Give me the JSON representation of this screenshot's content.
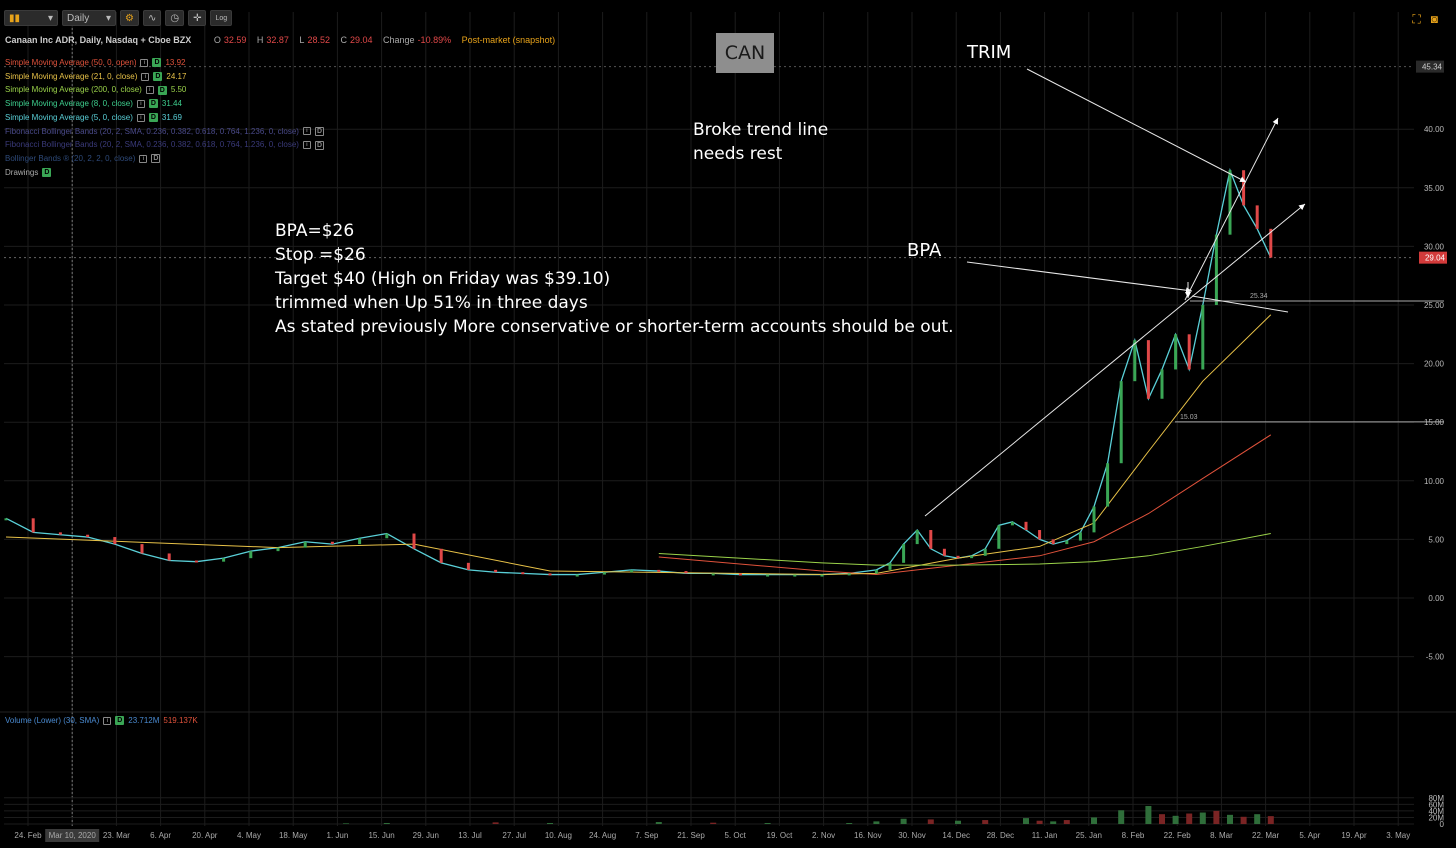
{
  "toolbar": {
    "chart_type_icon": "candlestick-icon",
    "timeframe": "Daily",
    "settings_icon": "gear-icon",
    "study_icon": "study-wave-icon",
    "clock_icon": "clock-icon",
    "drawing_icon": "drawing-icon",
    "log_label": "Log",
    "fullscreen_icon": "fullscreen-icon",
    "snapshot_icon": "camera-icon"
  },
  "header": {
    "symbol": "Canaan Inc ADR, Daily, Nasdaq + Cboe BZX",
    "o_label": "O",
    "o": "32.59",
    "h_label": "H",
    "h": "32.87",
    "l_label": "L",
    "l": "28.52",
    "c_label": "C",
    "c": "29.04",
    "change_label": "Change",
    "change": "-10.89%",
    "postmarket": "Post-market (snapshot)"
  },
  "studies": [
    {
      "label": "Simple Moving Average (50, 0, open)",
      "value": "13.92",
      "color": "#e0523b"
    },
    {
      "label": "Simple Moving Average (21, 0, close)",
      "value": "24.17",
      "color": "#e8c248"
    },
    {
      "label": "Simple Moving Average (200, 0, close)",
      "value": "5.50",
      "color": "#9bd34a"
    },
    {
      "label": "Simple Moving Average (8, 0, close)",
      "value": "31.44",
      "color": "#3ecf8e"
    },
    {
      "label": "Simple Moving Average (5, 0, close)",
      "value": "31.69",
      "color": "#5ad0d8"
    },
    {
      "label": "Fibonacci Bollinger Bands (20, 2, SMA, 0.236, 0.382, 0.618, 0.764, 1.236, 0, close)",
      "value": "",
      "color": "#4a4a8a"
    },
    {
      "label": "Fibonacci Bollinger Bands (20, 2, SMA, 0.236, 0.382, 0.618, 0.764, 1.236, 0, close)",
      "value": "",
      "color": "#3a3a7a"
    },
    {
      "label": "Bollinger Bands ® (20, 2, 2, 0, close)",
      "value": "",
      "color": "#2e4a7a"
    }
  ],
  "drawings_label": "Drawings",
  "badge_letter": "D",
  "volume_study": {
    "label": "Volume (Lower) (30, SMA)",
    "value1": "23.712M",
    "value2": "519.137K",
    "color1": "#4a8ad0",
    "color2": "#e0523b"
  },
  "annotations": {
    "can": "CAN",
    "trim": "TRIM",
    "broke_1": "Broke trend line",
    "broke_2": "needs rest",
    "bpa": "BPA",
    "note_lines": [
      "BPA=$26",
      "Stop =$26",
      "Target $40 (High on Friday was $39.10)",
      "trimmed when Up 51% in three days",
      "As stated previously More conservative or shorter-term accounts should be out."
    ]
  },
  "colors": {
    "up": "#3aa655",
    "down": "#e04848",
    "grid": "#1c1c1c",
    "sma50": "#e0523b",
    "sma21": "#e8c248",
    "sma200": "#9bd34a",
    "sma8": "#3ecf8e",
    "sma5": "#5ad0d8",
    "last_price_tag": "#d23a3a"
  },
  "chart_data": {
    "type": "line",
    "title": "Canaan Inc ADR, Daily, Nasdaq + Cboe BZX",
    "x_ticks": [
      "24. Feb",
      "Mar 10, 2020",
      "23. Mar",
      "6. Apr",
      "20. Apr",
      "4. May",
      "18. May",
      "1. Jun",
      "15. Jun",
      "29. Jun",
      "13. Jul",
      "27. Jul",
      "10. Aug",
      "24. Aug",
      "7. Sep",
      "21. Sep",
      "5. Oct",
      "19. Oct",
      "2. Nov",
      "16. Nov",
      "30. Nov",
      "14. Dec",
      "28. Dec",
      "11. Jan",
      "25. Jan",
      "8. Feb",
      "22. Feb",
      "8. Mar",
      "22. Mar",
      "5. Apr",
      "19. Apr",
      "3. May"
    ],
    "price_ticks": [
      "40.00",
      "35.00",
      "30.00",
      "25.00",
      "20.00",
      "15.00",
      "10.00",
      "5.00",
      "0.00",
      "-5.00"
    ],
    "price_range": [
      -8.5,
      45.5
    ],
    "volume_ticks": [
      "80M",
      "60M",
      "40M",
      "20M",
      "0"
    ],
    "volume_range": [
      0,
      80
    ],
    "last_price": "29.04",
    "last_price_value": 29.04,
    "top_label": "45.34",
    "top_label_value": 45.34,
    "level_25": {
      "label": "25.34",
      "value": 25.34
    },
    "level_15": {
      "label": "15.03",
      "value": 15.03
    },
    "series": [
      {
        "name": "Close",
        "x_index": [
          0,
          2,
          4,
          6,
          8,
          10,
          12,
          14,
          16,
          18,
          20,
          22,
          24,
          26,
          28,
          30,
          32,
          34,
          36,
          38,
          40,
          42,
          44,
          46,
          48,
          50,
          52,
          54,
          56,
          58,
          60,
          62,
          64,
          65,
          66,
          67,
          68,
          69,
          70,
          71,
          72,
          73,
          74,
          75,
          76,
          77,
          78,
          79,
          80,
          81,
          82,
          83,
          84,
          85,
          86,
          87,
          88,
          89,
          90,
          91,
          92,
          93
        ],
        "values": [
          6.8,
          5.6,
          5.4,
          5.2,
          4.6,
          3.8,
          3.2,
          3.1,
          3.4,
          4.0,
          4.3,
          4.8,
          4.6,
          5.1,
          5.5,
          4.2,
          3.0,
          2.4,
          2.2,
          2.1,
          2.0,
          2.0,
          2.2,
          2.4,
          2.3,
          2.1,
          2.1,
          2.0,
          2.0,
          2.0,
          2.0,
          2.1,
          2.4,
          3.0,
          4.6,
          5.8,
          4.2,
          3.6,
          3.4,
          3.6,
          4.2,
          6.2,
          6.5,
          5.8,
          5.0,
          4.6,
          4.9,
          5.6,
          7.8,
          11.5,
          18.5,
          22.0,
          17.0,
          19.5,
          22.5,
          19.5,
          25.0,
          31.0,
          36.5,
          33.5,
          31.5,
          29.04
        ]
      },
      {
        "name": "Simple Moving Average (50, 0, open)",
        "x_index": [
          48,
          60,
          64,
          70,
          76,
          80,
          84,
          88,
          93
        ],
        "values": [
          3.5,
          2.3,
          2.0,
          2.8,
          3.6,
          4.8,
          7.2,
          10.2,
          13.92
        ]
      },
      {
        "name": "Simple Moving Average (21, 0, close)",
        "x_index": [
          0,
          20,
          30,
          40,
          60,
          64,
          70,
          76,
          80,
          84,
          88,
          93
        ],
        "values": [
          5.2,
          4.3,
          4.6,
          2.3,
          2.0,
          2.1,
          3.4,
          4.4,
          6.4,
          12.5,
          18.5,
          24.17
        ]
      },
      {
        "name": "Simple Moving Average (200, 0, close)",
        "x_index": [
          48,
          60,
          64,
          70,
          76,
          80,
          84,
          88,
          93
        ],
        "values": [
          3.8,
          3.0,
          2.8,
          2.8,
          2.9,
          3.1,
          3.6,
          4.4,
          5.5
        ]
      }
    ],
    "volume": {
      "x_index": [
        25,
        28,
        36,
        40,
        48,
        52,
        56,
        62,
        64,
        66,
        68,
        70,
        72,
        75,
        76,
        77,
        78,
        80,
        82,
        84,
        85,
        86,
        87,
        88,
        89,
        90,
        91,
        92,
        93
      ],
      "values": [
        2,
        3,
        5,
        3,
        6,
        4,
        3,
        3,
        8,
        16,
        14,
        10,
        12,
        18,
        10,
        8,
        12,
        20,
        42,
        55,
        30,
        25,
        32,
        35,
        40,
        28,
        22,
        30,
        24
      ],
      "up": [
        true,
        true,
        false,
        true,
        true,
        false,
        true,
        true,
        true,
        true,
        false,
        true,
        false,
        true,
        false,
        true,
        false,
        true,
        true,
        true,
        false,
        true,
        false,
        true,
        false,
        true,
        false,
        true,
        false
      ]
    }
  }
}
